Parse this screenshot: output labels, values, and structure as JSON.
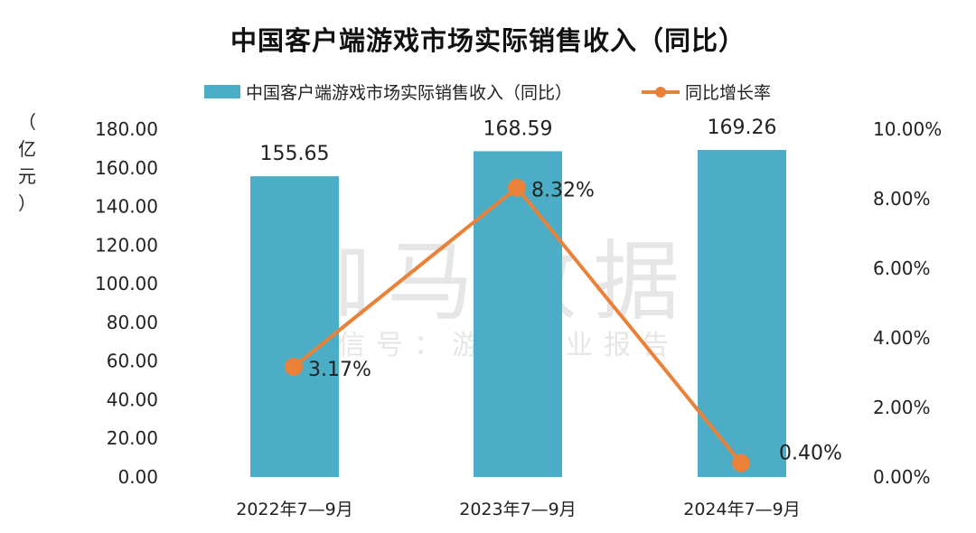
{
  "chart_data": {
    "type": "bar+line",
    "title": "中国客户端游戏市场实际销售收入（同比）",
    "categories": [
      "2022年7—9月",
      "2023年7—9月",
      "2024年7—9月"
    ],
    "series": [
      {
        "name": "中国客户端游戏市场实际销售收入（同比）",
        "type": "bar",
        "axis": "left",
        "values": [
          155.65,
          168.59,
          169.26
        ],
        "labels": [
          "155.65",
          "168.59",
          "169.26"
        ]
      },
      {
        "name": "同比增长率",
        "type": "line",
        "axis": "right",
        "values": [
          3.17,
          8.32,
          0.4
        ],
        "labels": [
          "3.17%",
          "8.32%",
          "0.40%"
        ]
      }
    ],
    "left_axis": {
      "label_chars": [
        "（",
        "亿",
        "元",
        "）"
      ],
      "ylim": [
        0,
        180
      ],
      "ticks": [
        "0.00",
        "20.00",
        "40.00",
        "60.00",
        "80.00",
        "100.00",
        "120.00",
        "140.00",
        "160.00",
        "180.00"
      ]
    },
    "right_axis": {
      "ylim": [
        0,
        10
      ],
      "ticks": [
        "0.00%",
        "2.00%",
        "4.00%",
        "6.00%",
        "8.00%",
        "10.00%"
      ]
    },
    "legend_position": "top",
    "grid": false
  },
  "watermark": {
    "main": "伽马数据",
    "sub": "微信号：游戏产业报告"
  },
  "colors": {
    "bar": "#4BAEC6",
    "line": "#EB8138",
    "text": "#222222"
  }
}
